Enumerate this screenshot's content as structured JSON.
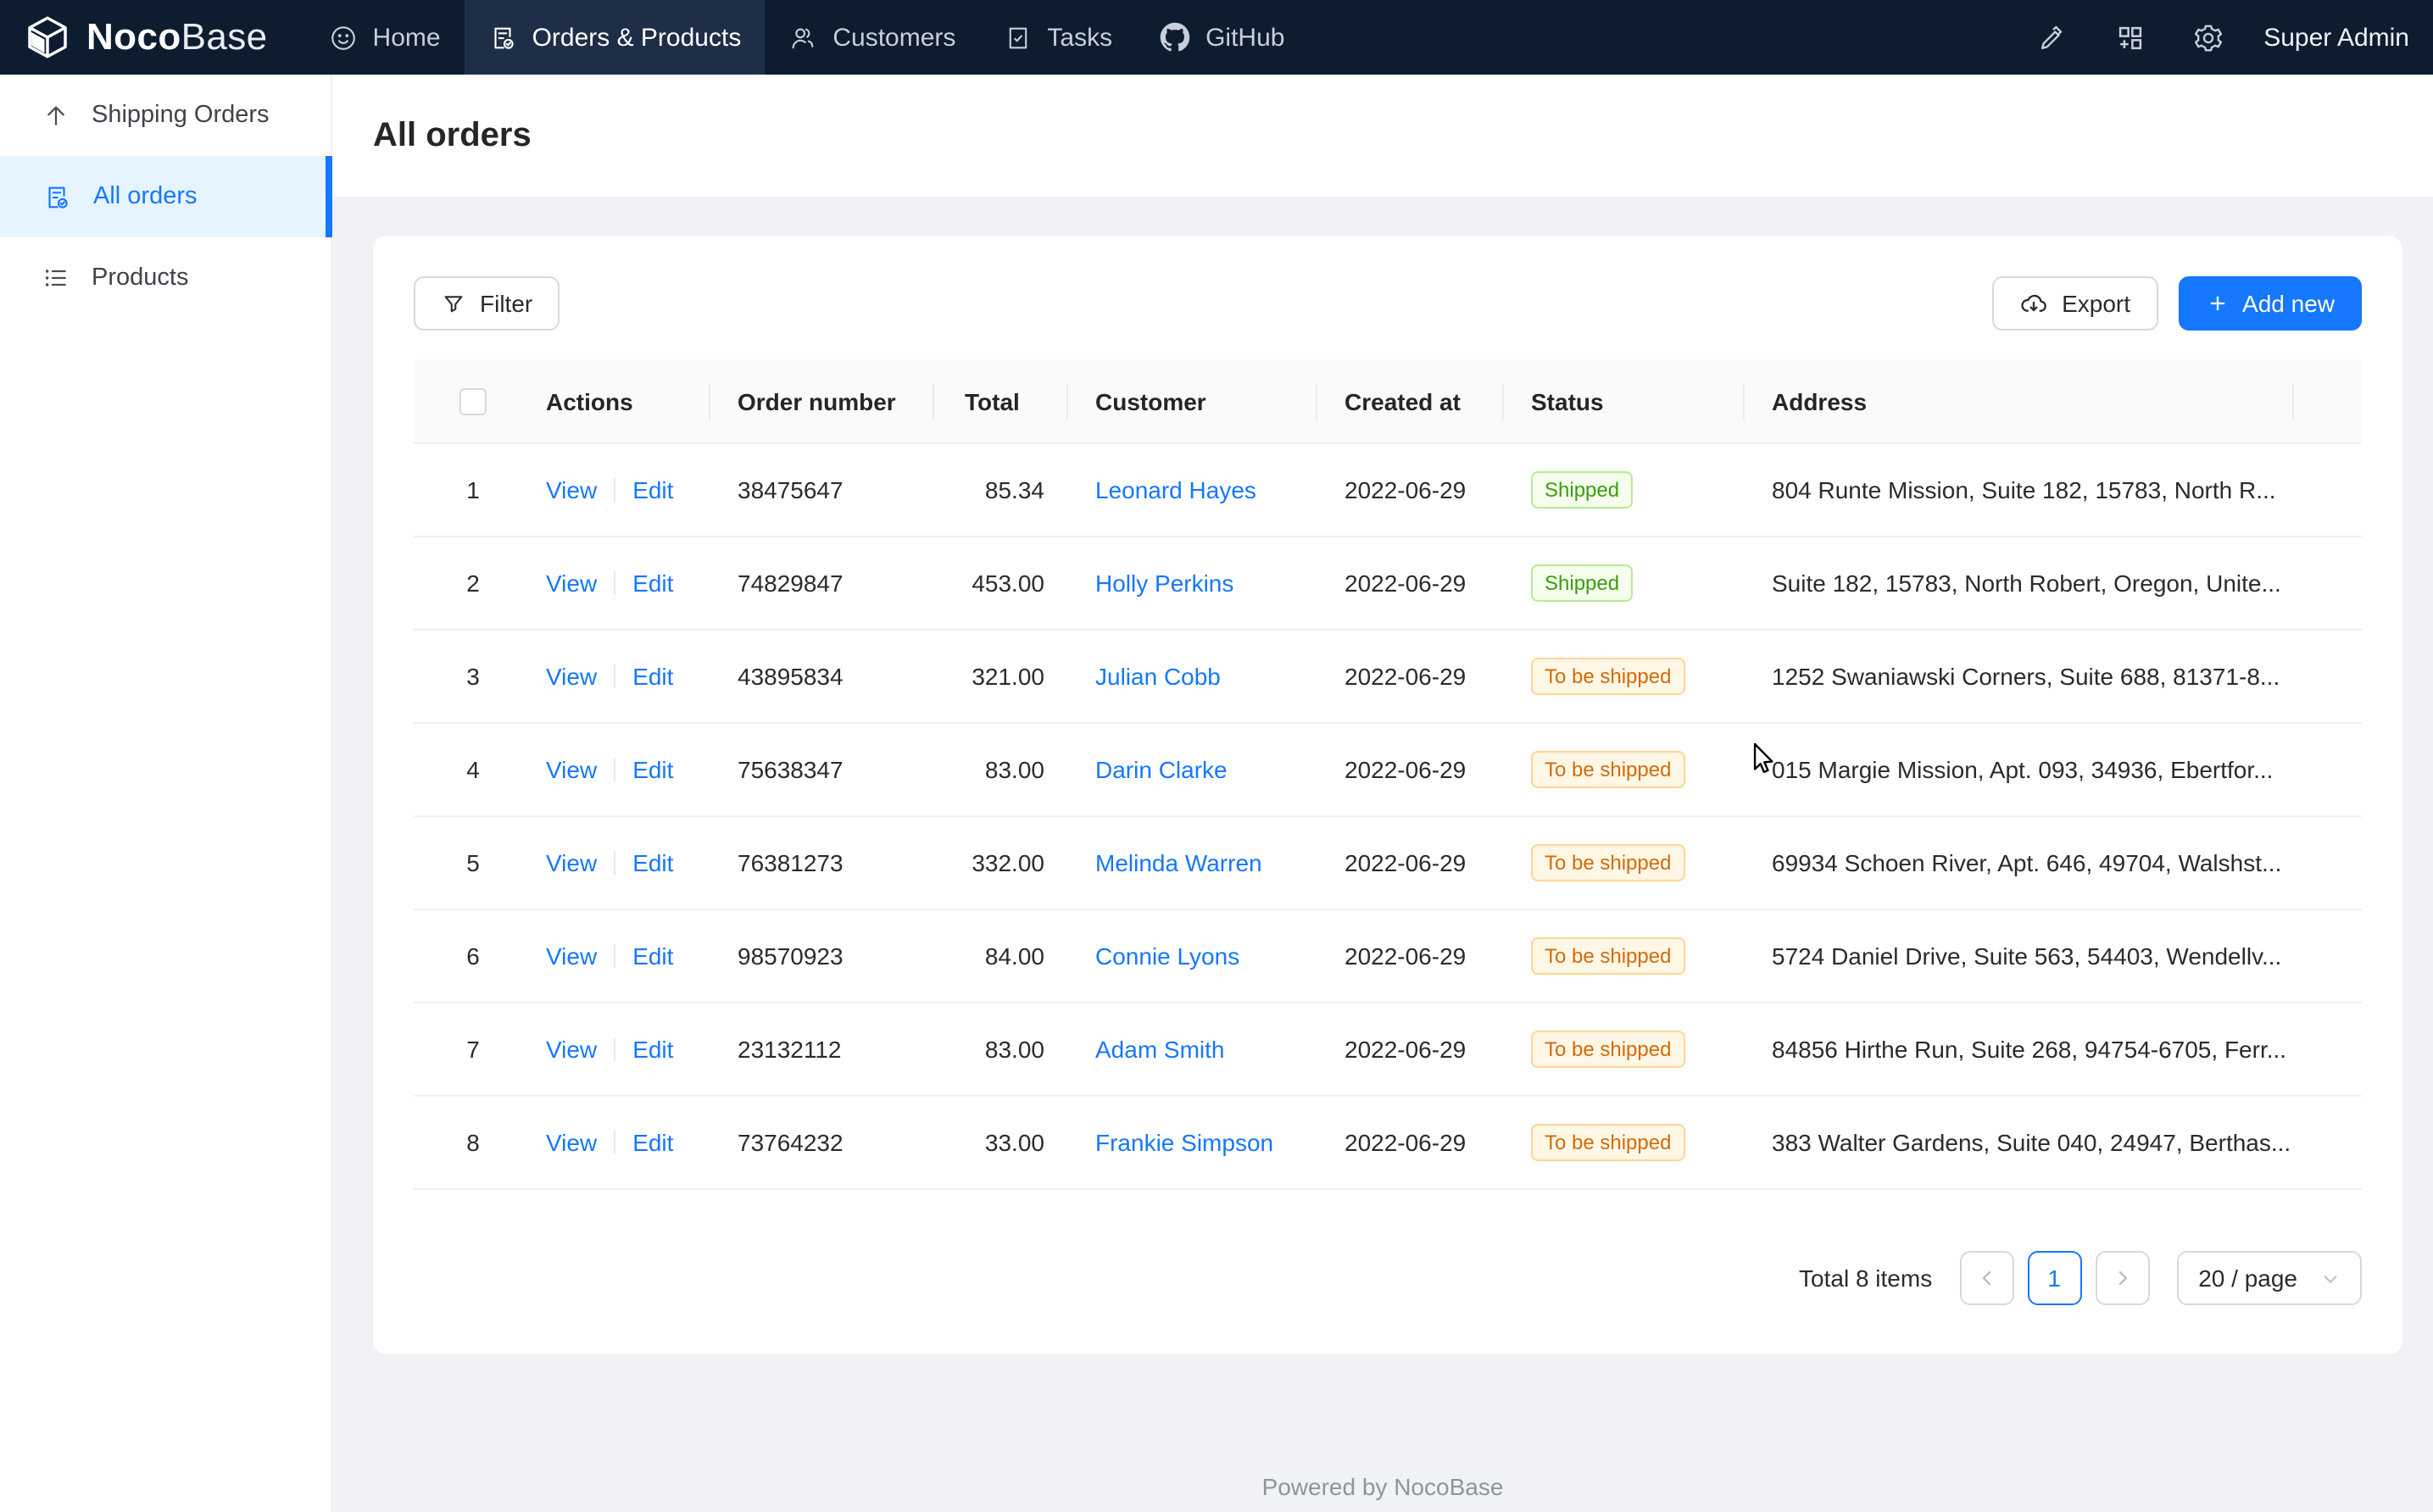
{
  "navbar": {
    "brand_bold": "Noco",
    "brand_light": "Base",
    "items": [
      {
        "label": "Home",
        "icon": "smiley-icon",
        "active": false
      },
      {
        "label": "Orders & Products",
        "icon": "order-check-icon",
        "active": true
      },
      {
        "label": "Customers",
        "icon": "customers-icon",
        "active": false
      },
      {
        "label": "Tasks",
        "icon": "tasks-icon",
        "active": false
      },
      {
        "label": "GitHub",
        "icon": "github-icon",
        "active": false
      }
    ],
    "right_icons": [
      "highlighter-icon",
      "blocks-add-icon",
      "gear-icon"
    ],
    "user": "Super Admin"
  },
  "sidebar": {
    "items": [
      {
        "label": "Shipping Orders",
        "icon": "arrow-up-icon",
        "active": false
      },
      {
        "label": "All orders",
        "icon": "order-check-icon",
        "active": true
      },
      {
        "label": "Products",
        "icon": "list-icon",
        "active": false
      }
    ]
  },
  "page": {
    "title": "All orders"
  },
  "toolbar": {
    "filter_label": "Filter",
    "export_label": "Export",
    "add_new_label": "Add new"
  },
  "table": {
    "columns": [
      {
        "key": "sel",
        "label": ""
      },
      {
        "key": "actions",
        "label": "Actions"
      },
      {
        "key": "order_number",
        "label": "Order number"
      },
      {
        "key": "total",
        "label": "Total"
      },
      {
        "key": "customer",
        "label": "Customer"
      },
      {
        "key": "created_at",
        "label": "Created at"
      },
      {
        "key": "status",
        "label": "Status"
      },
      {
        "key": "address",
        "label": "Address"
      },
      {
        "key": "extra",
        "label": ""
      }
    ],
    "action_labels": {
      "view": "View",
      "edit": "Edit"
    },
    "status_classes": {
      "Shipped": "tag-green",
      "To be shipped": "tag-orange"
    },
    "rows": [
      {
        "index": 1,
        "order_number": "38475647",
        "total": "85.34",
        "customer": "Leonard Hayes",
        "created_at": "2022-06-29",
        "status": "Shipped",
        "address": "804 Runte Mission, Suite 182, 15783, North R..."
      },
      {
        "index": 2,
        "order_number": "74829847",
        "total": "453.00",
        "customer": "Holly Perkins",
        "created_at": "2022-06-29",
        "status": "Shipped",
        "address": "Suite 182, 15783, North Robert, Oregon, Unite..."
      },
      {
        "index": 3,
        "order_number": "43895834",
        "total": "321.00",
        "customer": "Julian Cobb",
        "created_at": "2022-06-29",
        "status": "To be shipped",
        "address": "1252 Swaniawski Corners, Suite 688, 81371-8..."
      },
      {
        "index": 4,
        "order_number": "75638347",
        "total": "83.00",
        "customer": "Darin Clarke",
        "created_at": "2022-06-29",
        "status": "To be shipped",
        "address": "015 Margie Mission, Apt. 093, 34936, Ebertfor..."
      },
      {
        "index": 5,
        "order_number": "76381273",
        "total": "332.00",
        "customer": "Melinda Warren",
        "created_at": "2022-06-29",
        "status": "To be shipped",
        "address": "69934 Schoen River, Apt. 646, 49704, Walshst..."
      },
      {
        "index": 6,
        "order_number": "98570923",
        "total": "84.00",
        "customer": "Connie Lyons",
        "created_at": "2022-06-29",
        "status": "To be shipped",
        "address": "5724 Daniel Drive, Suite 563, 54403, Wendellv..."
      },
      {
        "index": 7,
        "order_number": "23132112",
        "total": "83.00",
        "customer": "Adam Smith",
        "created_at": "2022-06-29",
        "status": "To be shipped",
        "address": "84856 Hirthe Run, Suite 268, 94754-6705, Ferr..."
      },
      {
        "index": 8,
        "order_number": "73764232",
        "total": "33.00",
        "customer": "Frankie Simpson",
        "created_at": "2022-06-29",
        "status": "To be shipped",
        "address": "383 Walter Gardens, Suite 040, 24947, Berthas..."
      }
    ]
  },
  "pagination": {
    "total_text": "Total 8 items",
    "current_page": "1",
    "page_size": "20 / page"
  },
  "footer": {
    "text": "Powered by NocoBase"
  },
  "colors": {
    "navbar_bg": "#0e1c30",
    "navbar_active_bg": "#1e2e47",
    "accent": "#1677ff",
    "sidebar_active_bg": "#e6f4ff",
    "tag_shipped_text": "#389e0d",
    "tag_shipped_bg": "#f6ffed",
    "tag_shipped_border": "#b7eb8f",
    "tag_tobeshipped_text": "#d46b08",
    "tag_tobeshipped_bg": "#fff7e6",
    "tag_tobeshipped_border": "#ffd591"
  }
}
